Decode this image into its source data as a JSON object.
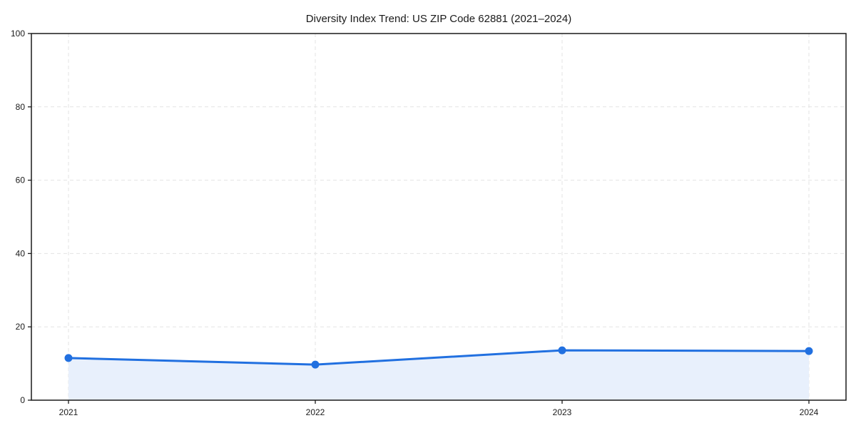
{
  "chart_data": {
    "type": "line",
    "title": "Diversity Index Trend: US ZIP Code 62881 (2021–2024)",
    "categories": [
      "2021",
      "2022",
      "2023",
      "2024"
    ],
    "values": [
      11.5,
      9.7,
      13.6,
      13.4
    ],
    "xlabel": "",
    "ylabel": "",
    "ylim": [
      0,
      100
    ],
    "y_ticks": [
      0,
      20,
      40,
      60,
      80,
      100
    ],
    "grid": "dashed-both-axes",
    "legend": "none",
    "area_fill": true,
    "marker": "circle",
    "colors": {
      "line": "#2170e0",
      "marker": "#2170e0",
      "area_fill": "#e8f0fc",
      "grid": "#e3e3e3",
      "spine": "#1a1a1a",
      "text": "#1a1a1a",
      "background": "#ffffff"
    }
  }
}
